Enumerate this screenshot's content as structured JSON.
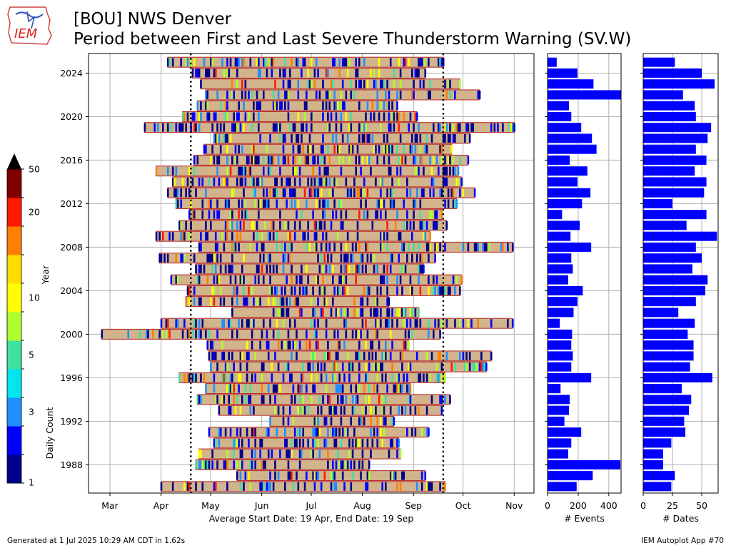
{
  "header": {
    "title_line1": "[BOU] NWS Denver",
    "title_line2": "Period between First and Last Severe Thunderstorm Warning (SV.W)",
    "logo_text": "IEM"
  },
  "footer": {
    "generated": "Generated at 1 Jul 2025 10:29 AM CDT in 1.62s",
    "app": "IEM Autoplot App #70"
  },
  "colors": {
    "bar_fill": "#d2b48c",
    "bar_edge": "#b22222",
    "count_bars": "#0000ff",
    "grid": "#b0b0b0",
    "colormap": [
      "#00008b",
      "#0000ff",
      "#1e90ff",
      "#00e5ee",
      "#40e0a0",
      "#adff2f",
      "#ffff00",
      "#ffdd00",
      "#ff8000",
      "#ff1a00",
      "#800000"
    ]
  },
  "colorbar": {
    "label": "Daily Count",
    "ticks": [
      "1",
      "3",
      "5",
      "10",
      "20",
      "50"
    ],
    "bounds": [
      1,
      2,
      3,
      4,
      5,
      7,
      10,
      13,
      16,
      20,
      25,
      50
    ]
  },
  "chart_data": [
    {
      "type": "bar",
      "orientation": "horizontal-range",
      "ylabel": "Year",
      "xlabel": "Average Start Date: 19 Apr, End Date: 19 Sep",
      "x_tick_labels": [
        "Mar",
        "Apr",
        "May",
        "Jun",
        "Jul",
        "Aug",
        "Sep",
        "Oct",
        "Nov"
      ],
      "y_tick_labels": [
        "1988",
        "1992",
        "1996",
        "2000",
        "2004",
        "2008",
        "2012",
        "2016",
        "2020",
        "2024"
      ],
      "xlim": [
        "2000-02-17",
        "2000-11-13"
      ],
      "ylim": [
        1985.4,
        2025.8
      ],
      "reference_lines": [
        "2000-04-19",
        "2000-09-19"
      ],
      "grid": true,
      "periods": [
        {
          "year": 1986,
          "start": "2000-04-01",
          "end": "2000-09-20"
        },
        {
          "year": 1987,
          "start": "2000-05-17",
          "end": "2000-09-08"
        },
        {
          "year": 1988,
          "start": "2000-04-22",
          "end": "2000-08-05"
        },
        {
          "year": 1989,
          "start": "2000-04-24",
          "end": "2000-08-24"
        },
        {
          "year": 1990,
          "start": "2000-05-03",
          "end": "2000-08-23"
        },
        {
          "year": 1991,
          "start": "2000-04-30",
          "end": "2000-09-10"
        },
        {
          "year": 1992,
          "start": "2000-06-06",
          "end": "2000-08-20"
        },
        {
          "year": 1993,
          "start": "2000-05-06",
          "end": "2000-09-18"
        },
        {
          "year": 1994,
          "start": "2000-04-23",
          "end": "2000-09-23"
        },
        {
          "year": 1995,
          "start": "2000-04-28",
          "end": "2000-08-30"
        },
        {
          "year": 1996,
          "start": "2000-04-12",
          "end": "2000-09-20"
        },
        {
          "year": 1997,
          "start": "2000-05-01",
          "end": "2000-10-15"
        },
        {
          "year": 1998,
          "start": "2000-04-30",
          "end": "2000-10-18"
        },
        {
          "year": 1999,
          "start": "2000-04-29",
          "end": "2000-08-29"
        },
        {
          "year": 2000,
          "start": "2000-02-25",
          "end": "2000-09-17"
        },
        {
          "year": 2001,
          "start": "2000-04-01",
          "end": "2000-10-31"
        },
        {
          "year": 2002,
          "start": "2000-05-14",
          "end": "2000-09-04"
        },
        {
          "year": 2003,
          "start": "2000-04-16",
          "end": "2000-08-17"
        },
        {
          "year": 2004,
          "start": "2000-04-17",
          "end": "2000-09-29"
        },
        {
          "year": 2005,
          "start": "2000-04-07",
          "end": "2000-09-30"
        },
        {
          "year": 2006,
          "start": "2000-04-22",
          "end": "2000-09-07"
        },
        {
          "year": 2007,
          "start": "2000-03-31",
          "end": "2000-09-14"
        },
        {
          "year": 2008,
          "start": "2000-04-24",
          "end": "2000-10-31"
        },
        {
          "year": 2009,
          "start": "2000-03-29",
          "end": "2000-09-11"
        },
        {
          "year": 2010,
          "start": "2000-04-12",
          "end": "2000-09-21"
        },
        {
          "year": 2011,
          "start": "2000-04-18",
          "end": "2000-09-18"
        },
        {
          "year": 2012,
          "start": "2000-04-10",
          "end": "2000-09-27"
        },
        {
          "year": 2013,
          "start": "2000-04-05",
          "end": "2000-10-08"
        },
        {
          "year": 2014,
          "start": "2000-04-08",
          "end": "2000-09-30"
        },
        {
          "year": 2015,
          "start": "2000-03-29",
          "end": "2000-09-28"
        },
        {
          "year": 2016,
          "start": "2000-04-21",
          "end": "2000-10-04"
        },
        {
          "year": 2017,
          "start": "2000-04-27",
          "end": "2000-09-24"
        },
        {
          "year": 2018,
          "start": "2000-05-03",
          "end": "2000-10-05"
        },
        {
          "year": 2019,
          "start": "2000-03-22",
          "end": "2000-11-01"
        },
        {
          "year": 2020,
          "start": "2000-04-14",
          "end": "2000-09-03"
        },
        {
          "year": 2021,
          "start": "2000-04-23",
          "end": "2000-08-22"
        },
        {
          "year": 2022,
          "start": "2000-04-28",
          "end": "2000-10-11"
        },
        {
          "year": 2023,
          "start": "2000-04-25",
          "end": "2000-09-29"
        },
        {
          "year": 2024,
          "start": "2000-04-20",
          "end": "2000-09-08"
        },
        {
          "year": 2025,
          "start": "2000-04-05",
          "end": "2000-09-19"
        }
      ]
    },
    {
      "type": "bar",
      "orientation": "horizontal",
      "xlabel": "# Events",
      "x_tick_labels": [
        "0",
        "200",
        "400"
      ],
      "xlim": [
        0,
        480
      ],
      "grid": true,
      "values": [
        {
          "year": 1986,
          "value": 190
        },
        {
          "year": 1987,
          "value": 295
        },
        {
          "year": 1988,
          "value": 475
        },
        {
          "year": 1989,
          "value": 135
        },
        {
          "year": 1990,
          "value": 155
        },
        {
          "year": 1991,
          "value": 220
        },
        {
          "year": 1992,
          "value": 110
        },
        {
          "year": 1993,
          "value": 140
        },
        {
          "year": 1994,
          "value": 145
        },
        {
          "year": 1995,
          "value": 85
        },
        {
          "year": 1996,
          "value": 285
        },
        {
          "year": 1997,
          "value": 155
        },
        {
          "year": 1998,
          "value": 165
        },
        {
          "year": 1999,
          "value": 155
        },
        {
          "year": 2000,
          "value": 160
        },
        {
          "year": 2001,
          "value": 80
        },
        {
          "year": 2002,
          "value": 170
        },
        {
          "year": 2003,
          "value": 195
        },
        {
          "year": 2004,
          "value": 230
        },
        {
          "year": 2005,
          "value": 135
        },
        {
          "year": 2006,
          "value": 165
        },
        {
          "year": 2007,
          "value": 155
        },
        {
          "year": 2008,
          "value": 285
        },
        {
          "year": 2009,
          "value": 150
        },
        {
          "year": 2010,
          "value": 210
        },
        {
          "year": 2011,
          "value": 95
        },
        {
          "year": 2012,
          "value": 225
        },
        {
          "year": 2013,
          "value": 280
        },
        {
          "year": 2014,
          "value": 195
        },
        {
          "year": 2015,
          "value": 260
        },
        {
          "year": 2016,
          "value": 145
        },
        {
          "year": 2017,
          "value": 320
        },
        {
          "year": 2018,
          "value": 290
        },
        {
          "year": 2019,
          "value": 220
        },
        {
          "year": 2020,
          "value": 155
        },
        {
          "year": 2021,
          "value": 140
        },
        {
          "year": 2022,
          "value": 480
        },
        {
          "year": 2023,
          "value": 300
        },
        {
          "year": 2024,
          "value": 195
        },
        {
          "year": 2025,
          "value": 60
        }
      ]
    },
    {
      "type": "bar",
      "orientation": "horizontal",
      "xlabel": "# Dates",
      "x_tick_labels": [
        "0",
        "25",
        "50"
      ],
      "xlim": [
        0,
        64
      ],
      "grid": true,
      "values": [
        {
          "year": 1986,
          "value": 24
        },
        {
          "year": 1987,
          "value": 27
        },
        {
          "year": 1988,
          "value": 17
        },
        {
          "year": 1989,
          "value": 17
        },
        {
          "year": 1990,
          "value": 24
        },
        {
          "year": 1991,
          "value": 36
        },
        {
          "year": 1992,
          "value": 35
        },
        {
          "year": 1993,
          "value": 39
        },
        {
          "year": 1994,
          "value": 41
        },
        {
          "year": 1995,
          "value": 33
        },
        {
          "year": 1996,
          "value": 59
        },
        {
          "year": 1997,
          "value": 40
        },
        {
          "year": 1998,
          "value": 43
        },
        {
          "year": 1999,
          "value": 43
        },
        {
          "year": 2000,
          "value": 38
        },
        {
          "year": 2001,
          "value": 44
        },
        {
          "year": 2002,
          "value": 30
        },
        {
          "year": 2003,
          "value": 45
        },
        {
          "year": 2004,
          "value": 53
        },
        {
          "year": 2005,
          "value": 55
        },
        {
          "year": 2006,
          "value": 42
        },
        {
          "year": 2007,
          "value": 50
        },
        {
          "year": 2008,
          "value": 45
        },
        {
          "year": 2009,
          "value": 63
        },
        {
          "year": 2010,
          "value": 37
        },
        {
          "year": 2011,
          "value": 54
        },
        {
          "year": 2012,
          "value": 25
        },
        {
          "year": 2013,
          "value": 52
        },
        {
          "year": 2014,
          "value": 54
        },
        {
          "year": 2015,
          "value": 44
        },
        {
          "year": 2016,
          "value": 54
        },
        {
          "year": 2017,
          "value": 45
        },
        {
          "year": 2018,
          "value": 55
        },
        {
          "year": 2019,
          "value": 58
        },
        {
          "year": 2020,
          "value": 45
        },
        {
          "year": 2021,
          "value": 44
        },
        {
          "year": 2022,
          "value": 34
        },
        {
          "year": 2023,
          "value": 61
        },
        {
          "year": 2024,
          "value": 50
        },
        {
          "year": 2025,
          "value": 27
        }
      ]
    }
  ]
}
